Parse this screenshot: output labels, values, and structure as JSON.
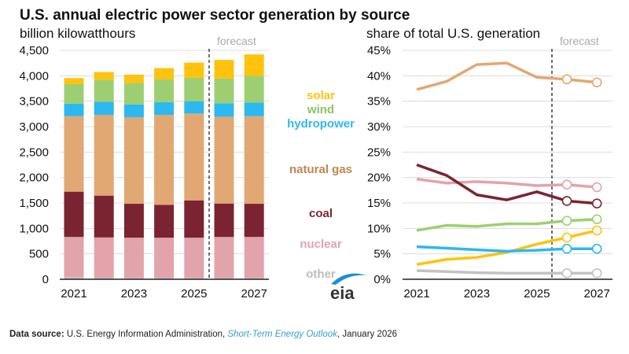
{
  "title": "U.S. annual electric power sector generation by source",
  "source": {
    "label": "Data source:",
    "org": "U.S. Energy Information Administration,",
    "publication": "Short-Term Energy Outlook",
    "date": ", January 2026"
  },
  "logo": "eia",
  "colors": {
    "solar": "#FFC20E",
    "wind": "#9DCF72",
    "hydropower": "#2DB8EF",
    "natural gas": "#E1A873",
    "coal": "#7B2431",
    "nuclear": "#E3A3AB",
    "other": "#C2C2C2"
  },
  "label_colors": {
    "solar": "#FFC20E",
    "wind": "#8CC265",
    "hydropower": "#2DB8EF",
    "natural gas": "#C0864C",
    "coal": "#7B2431",
    "nuclear": "#E3A3AB",
    "other": "#BDBDBD"
  },
  "legend": [
    "solar",
    "wind",
    "hydropower",
    "natural gas",
    "coal",
    "nuclear",
    "other"
  ],
  "chart_data": [
    {
      "type": "bar",
      "stacked": true,
      "ylabel": "billion kilowatthours",
      "ylim": [
        0,
        4500
      ],
      "yticks": [
        "0",
        "500",
        "1,000",
        "1,500",
        "2,000",
        "2,500",
        "3,000",
        "3,500",
        "4,000",
        "4,500"
      ],
      "categories": [
        "2021",
        "2022",
        "2023",
        "2024",
        "2025",
        "2026",
        "2027"
      ],
      "xtick_labels": [
        "2021",
        "2023",
        "2025",
        "2027"
      ],
      "forecast_label": "forecast",
      "forecast_starts": "2026",
      "grid": true,
      "series": [
        {
          "name": "other",
          "values": [
            41,
            31,
            25,
            25,
            25,
            25,
            25
          ]
        },
        {
          "name": "nuclear",
          "values": [
            791,
            791,
            792,
            792,
            792,
            807,
            807
          ]
        },
        {
          "name": "coal",
          "values": [
            890,
            822,
            667,
            646,
            734,
            657,
            652
          ]
        },
        {
          "name": "natural gas",
          "values": [
            1483,
            1587,
            1701,
            1768,
            1706,
            1706,
            1721
          ]
        },
        {
          "name": "hydropower",
          "values": [
            248,
            259,
            253,
            248,
            243,
            264,
            269
          ]
        },
        {
          "name": "wind",
          "values": [
            383,
            434,
            419,
            450,
            460,
            486,
            522
          ]
        },
        {
          "name": "solar",
          "values": [
            119,
            150,
            165,
            222,
            300,
            367,
            424
          ]
        }
      ]
    },
    {
      "type": "line",
      "ylabel": "share of total U.S. generation",
      "ylim": [
        0,
        45
      ],
      "yticks": [
        "0%",
        "5%",
        "10%",
        "15%",
        "20%",
        "25%",
        "30%",
        "35%",
        "40%",
        "45%"
      ],
      "x": [
        "2021",
        "2022",
        "2023",
        "2024",
        "2025",
        "2026",
        "2027"
      ],
      "xtick_labels": [
        "2021",
        "2023",
        "2025",
        "2027"
      ],
      "forecast_label": "forecast",
      "forecast_markers": "open circles on 2026 and 2027",
      "grid": true,
      "series": [
        {
          "name": "natural gas",
          "values": [
            37.3,
            38.9,
            42.2,
            42.5,
            39.7,
            39.3,
            38.7
          ]
        },
        {
          "name": "coal",
          "values": [
            22.5,
            20.4,
            16.6,
            15.6,
            17.2,
            15.4,
            14.9
          ]
        },
        {
          "name": "nuclear",
          "values": [
            19.7,
            18.9,
            19.2,
            18.9,
            18.4,
            18.6,
            18.1
          ]
        },
        {
          "name": "wind",
          "values": [
            9.6,
            10.6,
            10.4,
            10.9,
            10.9,
            11.5,
            11.8
          ]
        },
        {
          "name": "hydropower",
          "values": [
            6.4,
            6.1,
            5.8,
            5.5,
            5.7,
            6.0,
            6.0
          ]
        },
        {
          "name": "solar",
          "values": [
            2.9,
            3.9,
            4.3,
            5.3,
            6.9,
            8.2,
            9.6
          ]
        },
        {
          "name": "other",
          "values": [
            1.7,
            1.5,
            1.3,
            1.2,
            1.2,
            1.2,
            1.2
          ]
        }
      ]
    }
  ]
}
